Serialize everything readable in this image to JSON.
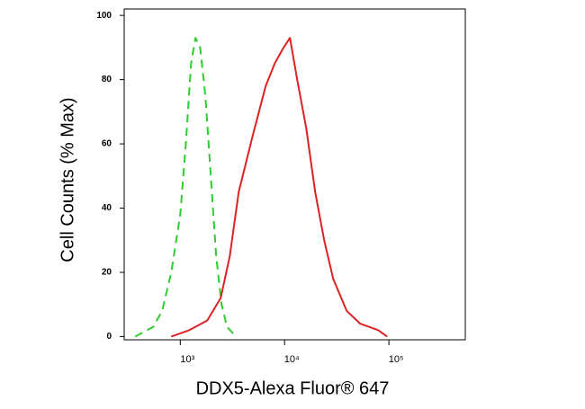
{
  "chart_data": {
    "type": "line",
    "x_label": "DDX5-Alexa Fluor® 647",
    "y_label": "Cell Counts (% Max)",
    "x_scale": "log",
    "xlim": [
      290,
      540000
    ],
    "ylim": [
      -1,
      102
    ],
    "xticks": [
      {
        "value": 1000,
        "label": "10³"
      },
      {
        "value": 10000,
        "label": "10⁴"
      },
      {
        "value": 100000,
        "label": "10⁵"
      }
    ],
    "yticks": [
      0,
      20,
      40,
      60,
      80,
      100
    ],
    "series": [
      {
        "color": "#2ecc2e",
        "dashed": true,
        "x": [
          370,
          550,
          670,
          820,
          1000,
          1130,
          1270,
          1400,
          1550,
          1740,
          1960,
          2210,
          2490,
          2810,
          3420
        ],
        "values": [
          0,
          3,
          8,
          20,
          38,
          60,
          85,
          93,
          90,
          75,
          50,
          25,
          10,
          3,
          0
        ]
      },
      {
        "color": "#dd2222",
        "dashed": false,
        "x": [
          820,
          1220,
          1810,
          2440,
          2980,
          3630,
          4900,
          6590,
          8040,
          9790,
          11260,
          13200,
          16110,
          19640,
          23950,
          29200,
          39400,
          53000,
          78900,
          96200
        ],
        "values": [
          0,
          2,
          5,
          12,
          25,
          45,
          62,
          78,
          85,
          90,
          93,
          80,
          65,
          45,
          30,
          18,
          8,
          4,
          2,
          0
        ]
      }
    ]
  }
}
